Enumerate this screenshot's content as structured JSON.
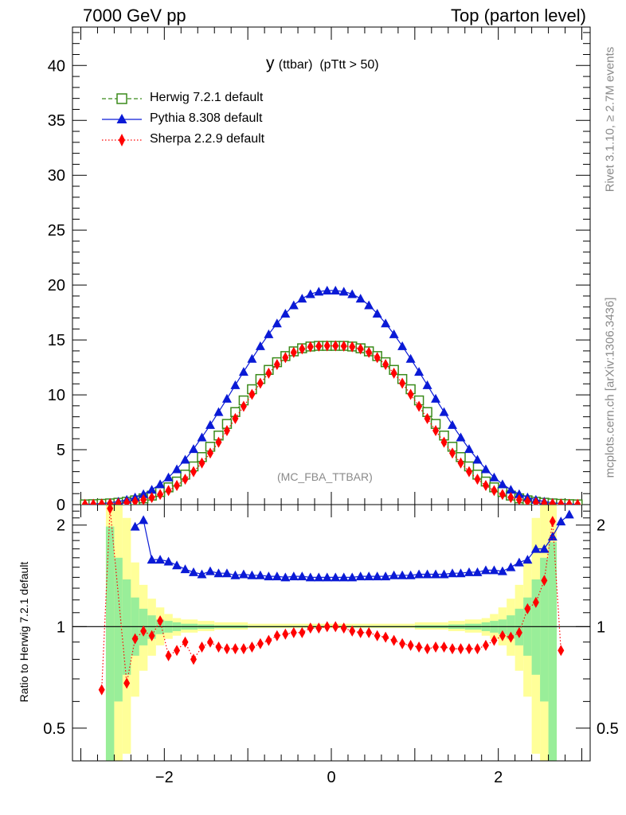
{
  "header": {
    "left": "7000 GeV pp",
    "right": "Top (parton level)"
  },
  "side_text": {
    "rivet": "Rivet 3.1.10, ≥ 2.7M events",
    "source": "mcplots.cern.ch [arXiv:1306.3436]"
  },
  "chart_data": {
    "type": "line",
    "title_main": "y",
    "title_detail": "(ttbar)  (pTtt > 50)",
    "analysis_label": "(MC_FBA_TTBAR)",
    "legend_position": "top-left",
    "colors": {
      "herwig": "#3a8a1a",
      "pythia": "#0a1ad6",
      "sherpa": "#ff0000",
      "band_yellow": "#ffff99",
      "band_green": "#99ee99"
    },
    "main_panel": {
      "xlim": [
        -3.1,
        3.1
      ],
      "ylim": [
        0,
        43.5
      ],
      "x_ticks": [
        -2,
        0,
        2
      ],
      "y_ticks": [
        0,
        5,
        10,
        15,
        20,
        25,
        30,
        35,
        40
      ],
      "y_tick_labels": [
        "0",
        "5",
        "10",
        "15",
        "20",
        "25",
        "30",
        "35",
        "40"
      ]
    },
    "ratio_panel": {
      "ylabel": "Ratio to Herwig 7.2.1 default",
      "ylim": [
        0.4,
        2.3
      ],
      "log_scale": true,
      "y_ticks": [
        0.5,
        1,
        2
      ],
      "y_tick_labels": [
        "0.5",
        "1",
        "2"
      ],
      "x_tick_labels": [
        "−2",
        "0",
        "2"
      ]
    },
    "x": [
      -2.95,
      -2.85,
      -2.75,
      -2.65,
      -2.55,
      -2.45,
      -2.35,
      -2.25,
      -2.15,
      -2.05,
      -1.95,
      -1.85,
      -1.75,
      -1.65,
      -1.55,
      -1.45,
      -1.35,
      -1.25,
      -1.15,
      -1.05,
      -0.95,
      -0.85,
      -0.75,
      -0.65,
      -0.55,
      -0.45,
      -0.35,
      -0.25,
      -0.15,
      -0.05,
      0.05,
      0.15,
      0.25,
      0.35,
      0.45,
      0.55,
      0.65,
      0.75,
      0.85,
      0.95,
      1.05,
      1.15,
      1.25,
      1.35,
      1.45,
      1.55,
      1.65,
      1.75,
      1.85,
      1.95,
      2.05,
      2.15,
      2.25,
      2.35,
      2.45,
      2.55,
      2.65,
      2.75,
      2.85,
      2.95
    ],
    "series": [
      {
        "name": "Herwig 7.2.1 default",
        "marker": "open-square",
        "line": "dashed",
        "values": [
          0.02,
          0.04,
          0.07,
          0.11,
          0.17,
          0.26,
          0.39,
          0.57,
          0.82,
          1.15,
          1.57,
          2.1,
          2.73,
          3.48,
          4.33,
          5.27,
          6.29,
          7.35,
          8.43,
          9.49,
          10.51,
          11.44,
          12.27,
          12.97,
          13.53,
          13.96,
          14.24,
          14.4,
          14.46,
          14.46,
          14.46,
          14.46,
          14.4,
          14.24,
          13.96,
          13.53,
          12.97,
          12.27,
          11.44,
          10.51,
          9.49,
          8.43,
          7.35,
          6.29,
          5.27,
          4.33,
          3.48,
          2.73,
          2.1,
          1.57,
          1.15,
          0.82,
          0.57,
          0.39,
          0.26,
          0.17,
          0.11,
          0.07,
          0.04,
          0.02
        ],
        "ratio": [
          null,
          null,
          null,
          null,
          null,
          null,
          null,
          null,
          null,
          null,
          null,
          null,
          null,
          null,
          null,
          null,
          null,
          null,
          null,
          null,
          null,
          null,
          null,
          null,
          null,
          null,
          null,
          null,
          null,
          null,
          null,
          null,
          null,
          null,
          null,
          null,
          null,
          null,
          null,
          null,
          null,
          null,
          null,
          null,
          null,
          null,
          null,
          null,
          null,
          null,
          null,
          null,
          null,
          null,
          null,
          null,
          null,
          null,
          null,
          null
        ]
      },
      {
        "name": "Pythia 8.308 default",
        "marker": "filled-triangle",
        "line": "solid",
        "values": [
          0.03,
          0.06,
          0.1,
          0.17,
          0.28,
          0.44,
          0.66,
          0.96,
          1.36,
          1.86,
          2.48,
          3.23,
          4.1,
          5.07,
          6.13,
          7.26,
          8.44,
          9.65,
          10.88,
          12.1,
          13.29,
          14.44,
          15.52,
          16.51,
          17.4,
          18.16,
          18.77,
          19.18,
          19.4,
          19.5,
          19.5,
          19.4,
          19.18,
          18.77,
          18.16,
          17.4,
          16.51,
          15.52,
          14.44,
          13.29,
          12.1,
          10.88,
          9.65,
          8.44,
          7.26,
          6.13,
          5.07,
          4.1,
          3.23,
          2.48,
          1.86,
          1.36,
          0.96,
          0.66,
          0.44,
          0.28,
          0.17,
          0.1,
          0.06,
          0.03
        ],
        "ratio": [
          null,
          null,
          null,
          null,
          null,
          null,
          1.98,
          2.07,
          1.58,
          1.58,
          1.56,
          1.52,
          1.48,
          1.45,
          1.43,
          1.46,
          1.44,
          1.44,
          1.42,
          1.43,
          1.42,
          1.42,
          1.41,
          1.41,
          1.4,
          1.41,
          1.41,
          1.4,
          1.4,
          1.4,
          1.4,
          1.4,
          1.4,
          1.41,
          1.41,
          1.41,
          1.41,
          1.42,
          1.42,
          1.42,
          1.43,
          1.43,
          1.43,
          1.43,
          1.44,
          1.44,
          1.45,
          1.45,
          1.47,
          1.47,
          1.46,
          1.5,
          1.55,
          1.58,
          1.7,
          1.7,
          1.85,
          2.05,
          2.15,
          null
        ]
      },
      {
        "name": "Sherpa 2.2.9 default",
        "marker": "filled-diamond",
        "line": "dotted",
        "values": [
          0.02,
          0.03,
          0.05,
          0.08,
          0.12,
          0.19,
          0.29,
          0.44,
          0.64,
          0.92,
          1.28,
          1.74,
          2.31,
          3.0,
          3.79,
          4.69,
          5.68,
          6.74,
          7.84,
          8.95,
          10.04,
          11.06,
          11.97,
          12.76,
          13.39,
          13.87,
          14.18,
          14.37,
          14.44,
          14.46,
          14.46,
          14.44,
          14.37,
          14.18,
          13.87,
          13.39,
          12.76,
          11.97,
          11.06,
          10.04,
          8.95,
          7.84,
          6.74,
          5.68,
          4.69,
          3.79,
          3.0,
          2.31,
          1.74,
          1.28,
          0.92,
          0.64,
          0.44,
          0.29,
          0.19,
          0.12,
          0.08,
          0.05,
          0.03,
          0.02
        ],
        "ratio": [
          null,
          null,
          0.65,
          2.24,
          null,
          0.68,
          0.92,
          0.97,
          0.94,
          1.04,
          0.82,
          0.85,
          0.9,
          0.8,
          0.87,
          0.9,
          0.87,
          0.86,
          0.86,
          0.86,
          0.87,
          0.89,
          0.91,
          0.94,
          0.95,
          0.96,
          0.96,
          0.99,
          0.99,
          1.0,
          1.0,
          0.99,
          0.97,
          0.96,
          0.96,
          0.94,
          0.93,
          0.91,
          0.89,
          0.88,
          0.87,
          0.86,
          0.87,
          0.87,
          0.86,
          0.86,
          0.86,
          0.86,
          0.88,
          0.91,
          0.94,
          0.93,
          0.96,
          1.13,
          1.18,
          1.37,
          2.05,
          0.85,
          null,
          null
        ]
      }
    ],
    "uncertainty_bands": {
      "x_edges": [
        -2.7,
        -2.6,
        -2.5,
        -2.4,
        -2.3,
        -2.2,
        -2.1,
        -2.0,
        -1.9,
        -1.8,
        -1.6,
        -1.4,
        -1.0,
        1.0,
        1.4,
        1.6,
        1.8,
        1.9,
        2.0,
        2.1,
        2.2,
        2.3,
        2.4,
        2.5,
        2.6,
        2.7
      ],
      "yellow_low": [
        0.4,
        0.4,
        0.42,
        0.62,
        0.74,
        0.82,
        0.88,
        0.92,
        0.94,
        0.96,
        0.97,
        0.98,
        0.99,
        0.98,
        0.97,
        0.96,
        0.94,
        0.92,
        0.88,
        0.82,
        0.74,
        0.62,
        0.42,
        0.4,
        0.4
      ],
      "yellow_high": [
        2.6,
        2.6,
        2.1,
        1.55,
        1.33,
        1.21,
        1.14,
        1.09,
        1.06,
        1.05,
        1.04,
        1.03,
        1.02,
        1.03,
        1.04,
        1.05,
        1.06,
        1.09,
        1.14,
        1.21,
        1.33,
        1.55,
        2.1,
        2.6,
        2.6
      ],
      "green_low": [
        0.4,
        0.6,
        0.72,
        0.82,
        0.88,
        0.92,
        0.95,
        0.96,
        0.97,
        0.98,
        0.985,
        0.99,
        0.995,
        0.99,
        0.985,
        0.98,
        0.97,
        0.96,
        0.95,
        0.92,
        0.88,
        0.82,
        0.72,
        0.6,
        0.4
      ],
      "green_high": [
        1.98,
        1.6,
        1.38,
        1.22,
        1.13,
        1.08,
        1.05,
        1.04,
        1.03,
        1.02,
        1.015,
        1.01,
        1.005,
        1.01,
        1.015,
        1.02,
        1.03,
        1.04,
        1.05,
        1.08,
        1.13,
        1.22,
        1.38,
        1.6,
        1.78
      ]
    }
  }
}
